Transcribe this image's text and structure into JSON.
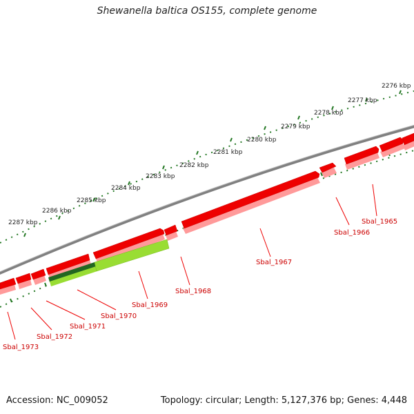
{
  "title": "Shewanella baltica OS155, complete genome",
  "footer": {
    "accession": "Accession: NC_009052",
    "topology": "Topology: circular; Length: 5,127,376 bp; Genes: 4,448"
  },
  "ruler_labels": [
    "2276 kbp",
    "2277 kbp",
    "2278 kbp",
    "2279 kbp",
    "2280 kbp",
    "2281 kbp",
    "2282 kbp",
    "2283 kbp",
    "2284 kbp",
    "2285 kbp",
    "2286 kbp",
    "2287 kbp"
  ],
  "gene_labels": [
    "Sbal_1965",
    "Sbal_1966",
    "Sbal_1967",
    "Sbal_1968",
    "Sbal_1969",
    "Sbal_1970",
    "Sbal_1971",
    "Sbal_1972",
    "Sbal_1973"
  ],
  "colors": {
    "backbone": "#808080",
    "forward_gene": "#ee0000",
    "label": "#cc0000",
    "ticks": "#227722",
    "rna_dark": "#226622",
    "rna_light": "#99dd33"
  }
}
